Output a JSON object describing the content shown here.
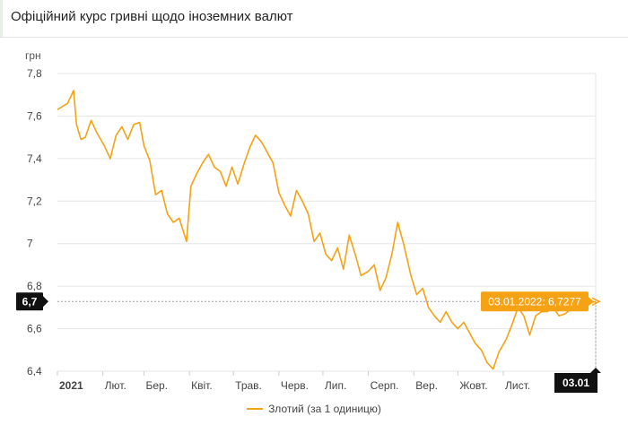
{
  "header": {
    "title": "Офіційний курс гривні щодо іноземних валют"
  },
  "colors": {
    "line": "#f5a214",
    "tooltip_bg": "#f5a214",
    "badge_bg": "#111111",
    "grid": "#e6e6e6"
  },
  "chart_data": {
    "type": "line",
    "ylabel": "грн",
    "ylim": [
      6.4,
      7.8
    ],
    "yticks": [
      {
        "value": 7.8,
        "label": "7,8"
      },
      {
        "value": 7.6,
        "label": "7,6"
      },
      {
        "value": 7.4,
        "label": "7,4"
      },
      {
        "value": 7.2,
        "label": "7,2"
      },
      {
        "value": 7.0,
        "label": "7"
      },
      {
        "value": 6.8,
        "label": "6,8"
      },
      {
        "value": 6.6,
        "label": "6,6"
      },
      {
        "value": 6.4,
        "label": "6,4"
      }
    ],
    "xticks": [
      "2021",
      "Лют.",
      "Бер.",
      "Квіт.",
      "Трав.",
      "Черв.",
      "Лип.",
      "Серп.",
      "Вер.",
      "Жовт.",
      "Лист."
    ],
    "grid": "horizontal",
    "legend_position": "bottom",
    "series": [
      {
        "name": "Злотий (за 1 одиницю)",
        "x": [
          "2021-01-01",
          "2021-01-08",
          "2021-01-12",
          "2021-01-14",
          "2021-01-17",
          "2021-01-20",
          "2021-01-24",
          "2021-01-28",
          "2021-02-02",
          "2021-02-06",
          "2021-02-10",
          "2021-02-14",
          "2021-02-18",
          "2021-02-22",
          "2021-02-26",
          "2021-03-01",
          "2021-03-05",
          "2021-03-09",
          "2021-03-13",
          "2021-03-17",
          "2021-03-21",
          "2021-03-25",
          "2021-03-30",
          "2021-04-02",
          "2021-04-06",
          "2021-04-10",
          "2021-04-14",
          "2021-04-18",
          "2021-04-22",
          "2021-04-26",
          "2021-04-30",
          "2021-05-04",
          "2021-05-08",
          "2021-05-12",
          "2021-05-16",
          "2021-05-20",
          "2021-05-24",
          "2021-05-28",
          "2021-06-01",
          "2021-06-05",
          "2021-06-09",
          "2021-06-13",
          "2021-06-17",
          "2021-06-21",
          "2021-06-25",
          "2021-06-29",
          "2021-07-03",
          "2021-07-07",
          "2021-07-11",
          "2021-07-15",
          "2021-07-19",
          "2021-07-23",
          "2021-07-27",
          "2021-08-01",
          "2021-08-05",
          "2021-08-09",
          "2021-08-13",
          "2021-08-17",
          "2021-08-21",
          "2021-08-25",
          "2021-08-30",
          "2021-09-03",
          "2021-09-07",
          "2021-09-11",
          "2021-09-15",
          "2021-09-19",
          "2021-09-23",
          "2021-09-27",
          "2021-10-01",
          "2021-10-05",
          "2021-10-09",
          "2021-10-13",
          "2021-10-17",
          "2021-10-21",
          "2021-10-25",
          "2021-10-29",
          "2021-11-03",
          "2021-11-07",
          "2021-11-11",
          "2021-11-15",
          "2021-11-19",
          "2021-11-23",
          "2021-11-27",
          "2021-12-01",
          "2021-12-05",
          "2021-12-09",
          "2021-12-13",
          "2021-12-17",
          "2021-12-21",
          "2021-12-25",
          "2021-12-29",
          "2022-01-03"
        ],
        "values": [
          7.63,
          7.66,
          7.72,
          7.56,
          7.49,
          7.5,
          7.58,
          7.52,
          7.46,
          7.4,
          7.51,
          7.55,
          7.49,
          7.56,
          7.57,
          7.46,
          7.39,
          7.23,
          7.25,
          7.14,
          7.1,
          7.12,
          7.01,
          7.27,
          7.33,
          7.38,
          7.42,
          7.36,
          7.34,
          7.27,
          7.36,
          7.28,
          7.37,
          7.45,
          7.51,
          7.48,
          7.43,
          7.38,
          7.24,
          7.18,
          7.13,
          7.25,
          7.2,
          7.14,
          7.01,
          7.05,
          6.95,
          6.92,
          6.98,
          6.88,
          7.04,
          6.95,
          6.85,
          6.87,
          6.9,
          6.78,
          6.84,
          6.95,
          7.1,
          7.0,
          6.85,
          6.76,
          6.79,
          6.7,
          6.66,
          6.63,
          6.68,
          6.63,
          6.6,
          6.63,
          6.58,
          6.53,
          6.5,
          6.44,
          6.41,
          6.49,
          6.55,
          6.62,
          6.7,
          6.66,
          6.57,
          6.66,
          6.68,
          6.68,
          6.7,
          6.66,
          6.67,
          6.69,
          6.7,
          6.71,
          6.72,
          6.7277
        ]
      }
    ],
    "crosshair": {
      "x_label": "03.01",
      "y_label": "6,7",
      "tooltip": "03.01.2022: 6,7277"
    }
  }
}
